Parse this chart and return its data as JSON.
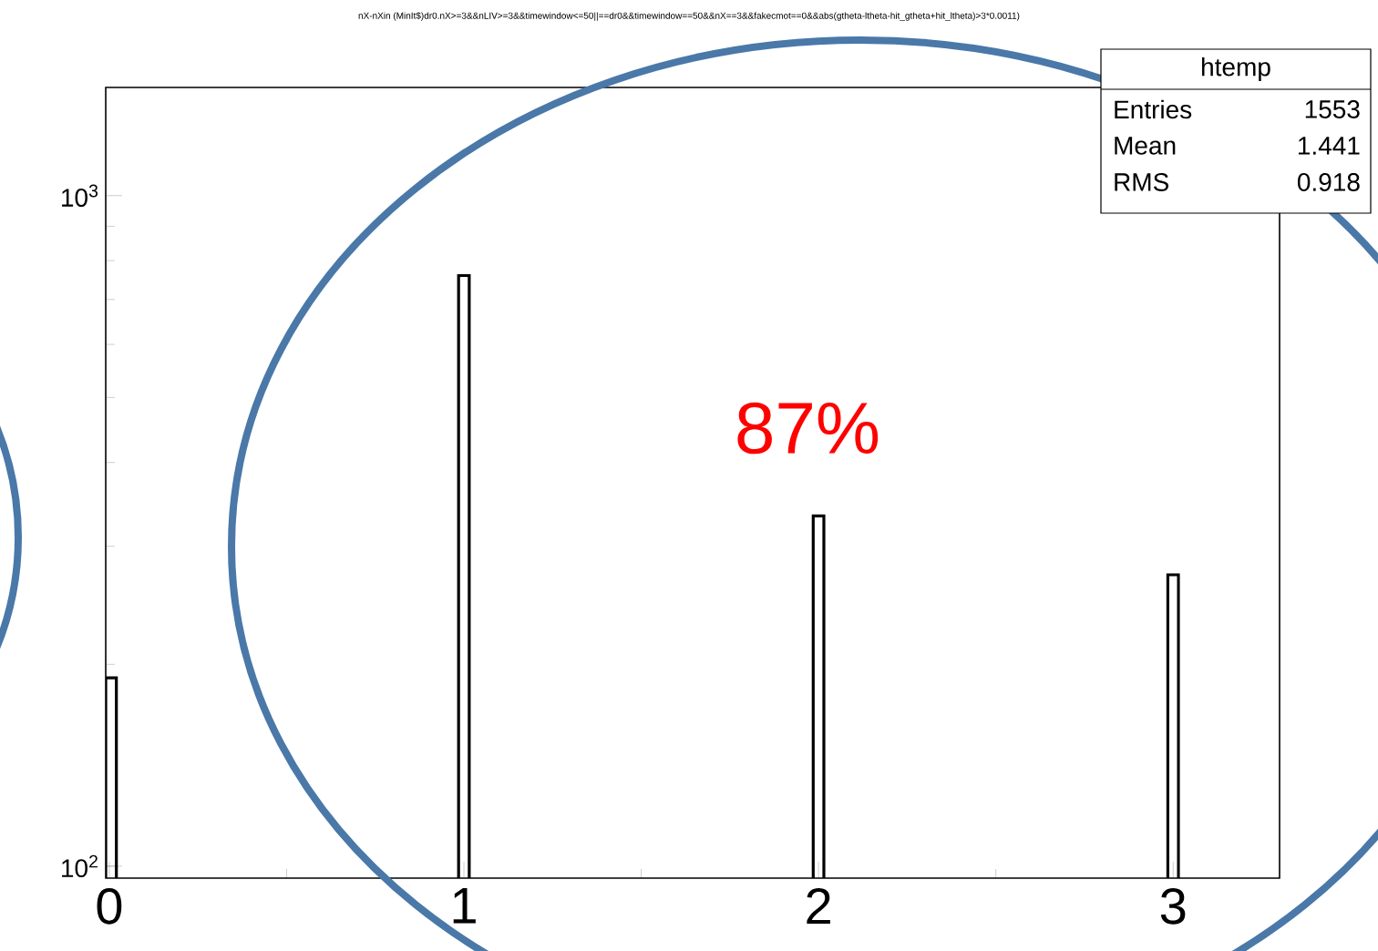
{
  "chart_data": {
    "type": "histogram",
    "title": "nX-nXin (MinIt$)dr0.nX>=3&&nLIV>=3&&timewindow<=50||==dr0&&timewindow==50&&nX==3&&fakecmot==0&&abs(gtheta-ltheta-hit_gtheta+hit_ltheta)>3*0.0011)",
    "bins": [
      -0.01,
      0.02,
      0.985,
      1.015,
      1.985,
      2.015,
      2.985,
      3.015
    ],
    "values": [
      191,
      null,
      760,
      null,
      333,
      null,
      272
    ],
    "color": "#000000",
    "log": "y",
    "xlim": [
      -0.01,
      3.3
    ],
    "ylim": [
      96,
      1450
    ],
    "xticks": [
      0,
      1,
      2,
      3
    ],
    "yticks": [
      {
        "value": 100,
        "label": "10$^{2}$"
      },
      {
        "value": 1000,
        "label": "10$^{3}$"
      }
    ],
    "grid": false,
    "annotations": [
      "htemp",
      "Entries",
      "1553",
      "Mean",
      "1.441",
      "RMS",
      "0.918",
      "87%"
    ]
  }
}
